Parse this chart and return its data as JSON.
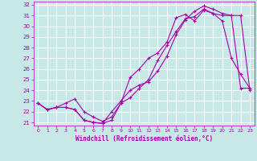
{
  "xlabel": "Windchill (Refroidissement éolien,°C)",
  "xlim": [
    -0.5,
    23.5
  ],
  "ylim": [
    20.7,
    32.3
  ],
  "yticks": [
    21,
    22,
    23,
    24,
    25,
    26,
    27,
    28,
    29,
    30,
    31,
    32
  ],
  "xticks": [
    0,
    1,
    2,
    3,
    4,
    5,
    6,
    7,
    8,
    9,
    10,
    11,
    12,
    13,
    14,
    15,
    16,
    17,
    18,
    19,
    20,
    21,
    22,
    23
  ],
  "background_color": "#c8e8e8",
  "grid_color": "#ffffff",
  "line_color": "#aa00aa",
  "line1_x": [
    0,
    1,
    2,
    3,
    4,
    5,
    6,
    7,
    8,
    9,
    10,
    11,
    12,
    13,
    14,
    15,
    16,
    17,
    18,
    19,
    20,
    21,
    22,
    23
  ],
  "line1_y": [
    22.8,
    22.2,
    22.4,
    22.4,
    22.2,
    21.2,
    21.0,
    20.9,
    21.2,
    22.8,
    23.3,
    24.2,
    25.0,
    26.8,
    28.2,
    29.5,
    30.7,
    30.9,
    31.6,
    31.2,
    31.0,
    31.0,
    24.2,
    24.2
  ],
  "line2_x": [
    0,
    1,
    2,
    3,
    4,
    5,
    6,
    7,
    8,
    9,
    10,
    11,
    12,
    13,
    14,
    15,
    16,
    17,
    18,
    19,
    20,
    21,
    22,
    23
  ],
  "line2_y": [
    22.8,
    22.2,
    22.4,
    22.8,
    23.2,
    22.0,
    21.5,
    21.1,
    21.5,
    22.8,
    25.2,
    26.0,
    27.0,
    27.5,
    28.5,
    30.8,
    31.1,
    30.5,
    31.5,
    31.2,
    30.5,
    27.0,
    25.5,
    24.2
  ],
  "line3_x": [
    0,
    1,
    2,
    3,
    4,
    5,
    6,
    7,
    8,
    9,
    10,
    11,
    12,
    13,
    14,
    15,
    16,
    17,
    18,
    19,
    20,
    21,
    22,
    23
  ],
  "line3_y": [
    22.8,
    22.2,
    22.4,
    22.4,
    22.2,
    21.2,
    21.0,
    20.9,
    22.0,
    23.0,
    24.0,
    24.5,
    24.8,
    25.8,
    27.2,
    29.2,
    30.6,
    31.4,
    31.9,
    31.6,
    31.2,
    31.0,
    31.0,
    24.0
  ]
}
